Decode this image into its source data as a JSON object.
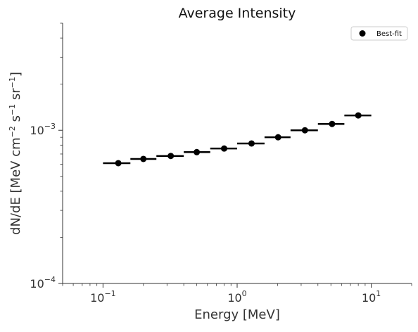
{
  "chart_data": {
    "type": "scatter",
    "title": "Average Intensity",
    "xlabel": "Energy [MeV]",
    "ylabel_base": "dN/dE [MeV cm",
    "ylabel_exp1": "−2",
    "ylabel_mid1": " s",
    "ylabel_exp2": "−1",
    "ylabel_mid2": " sr",
    "ylabel_exp3": "−1",
    "ylabel_end": "]",
    "xscale": "log",
    "yscale": "log",
    "xlim": [
      0.05,
      20
    ],
    "ylim": [
      0.0001,
      0.005
    ],
    "grid": false,
    "legend_position": "top-right",
    "x_ticks": [
      {
        "value": 0.1,
        "base": "10",
        "exp": "−1"
      },
      {
        "value": 1,
        "base": "10",
        "exp": "0"
      },
      {
        "value": 10,
        "base": "10",
        "exp": "1"
      }
    ],
    "y_ticks": [
      {
        "value": 0.0001,
        "base": "10",
        "exp": "−4"
      },
      {
        "value": 0.001,
        "base": "10",
        "exp": "−3"
      }
    ],
    "series": [
      {
        "name": "Best-fit",
        "color": "#000000",
        "points": [
          {
            "x": 0.13,
            "y": 0.00061,
            "xlo": 0.1,
            "xhi": 0.16
          },
          {
            "x": 0.2,
            "y": 0.00065,
            "xlo": 0.16,
            "xhi": 0.25
          },
          {
            "x": 0.32,
            "y": 0.00068,
            "xlo": 0.25,
            "xhi": 0.4
          },
          {
            "x": 0.5,
            "y": 0.00072,
            "xlo": 0.4,
            "xhi": 0.63
          },
          {
            "x": 0.8,
            "y": 0.00076,
            "xlo": 0.63,
            "xhi": 1.0
          },
          {
            "x": 1.28,
            "y": 0.00082,
            "xlo": 1.0,
            "xhi": 1.6
          },
          {
            "x": 2.02,
            "y": 0.0009,
            "xlo": 1.6,
            "xhi": 2.5
          },
          {
            "x": 3.2,
            "y": 0.001,
            "xlo": 2.5,
            "xhi": 4.0
          },
          {
            "x": 5.1,
            "y": 0.0011,
            "xlo": 4.0,
            "xhi": 6.3
          },
          {
            "x": 8.0,
            "y": 0.00125,
            "xlo": 6.3,
            "xhi": 10.0
          }
        ]
      }
    ]
  }
}
